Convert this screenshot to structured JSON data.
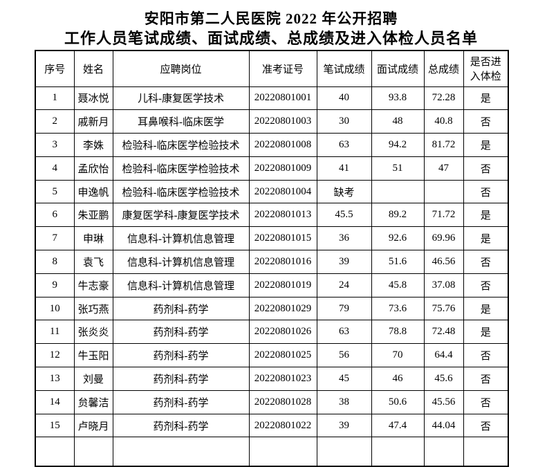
{
  "title": {
    "line1": "安阳市第二人民医院 2022 年公开招聘",
    "line2": "工作人员笔试成绩、面试成绩、总成绩及进入体检人员名单"
  },
  "table": {
    "headers": [
      "序号",
      "姓名",
      "应聘岗位",
      "准考证号",
      "笔试成绩",
      "面试成绩",
      "总成绩",
      "是否进\n入体检"
    ],
    "rows": [
      [
        "1",
        "聂冰悦",
        "儿科-康复医学技术",
        "20220801001",
        "40",
        "93.8",
        "72.28",
        "是"
      ],
      [
        "2",
        "戚新月",
        "耳鼻喉科-临床医学",
        "20220801003",
        "30",
        "48",
        "40.8",
        "否"
      ],
      [
        "3",
        "李姝",
        "检验科-临床医学检验技术",
        "20220801008",
        "63",
        "94.2",
        "81.72",
        "是"
      ],
      [
        "4",
        "孟欣怡",
        "检验科-临床医学检验技术",
        "20220801009",
        "41",
        "51",
        "47",
        "否"
      ],
      [
        "5",
        "申逸帆",
        "检验科-临床医学检验技术",
        "20220801004",
        "缺考",
        "",
        "",
        "否"
      ],
      [
        "6",
        "朱亚鹏",
        "康复医学科-康复医学技术",
        "20220801013",
        "45.5",
        "89.2",
        "71.72",
        "是"
      ],
      [
        "7",
        "申琳",
        "信息科-计算机信息管理",
        "20220801015",
        "36",
        "92.6",
        "69.96",
        "是"
      ],
      [
        "8",
        "袁飞",
        "信息科-计算机信息管理",
        "20220801016",
        "39",
        "51.6",
        "46.56",
        "否"
      ],
      [
        "9",
        "牛志豪",
        "信息科-计算机信息管理",
        "20220801019",
        "24",
        "45.8",
        "37.08",
        "否"
      ],
      [
        "10",
        "张巧燕",
        "药剂科-药学",
        "20220801029",
        "79",
        "73.6",
        "75.76",
        "是"
      ],
      [
        "11",
        "张炎炎",
        "药剂科-药学",
        "20220801026",
        "63",
        "78.8",
        "72.48",
        "是"
      ],
      [
        "12",
        "牛玉阳",
        "药剂科-药学",
        "20220801025",
        "56",
        "70",
        "64.4",
        "否"
      ],
      [
        "13",
        "刘曼",
        "药剂科-药学",
        "20220801023",
        "45",
        "46",
        "45.6",
        "否"
      ],
      [
        "14",
        "贠馨洁",
        "药剂科-药学",
        "20220801028",
        "38",
        "50.6",
        "45.56",
        "否"
      ],
      [
        "15",
        "卢晓月",
        "药剂科-药学",
        "20220801022",
        "39",
        "47.4",
        "44.04",
        "否"
      ]
    ],
    "has_partial_bottom_row": true
  },
  "colors": {
    "text": "#000000",
    "border": "#000000",
    "background": "#ffffff"
  }
}
